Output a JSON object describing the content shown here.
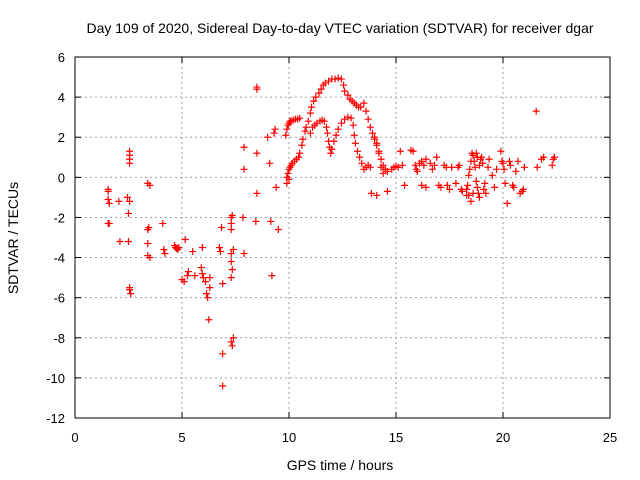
{
  "chart_data": {
    "type": "scatter",
    "title": "Day 109 of 2020, Sidereal Day-to-day VTEC variation (SDTVAR) for receiver dgar",
    "xlabel": "GPS time / hours",
    "ylabel": "SDTVAR / TECUs",
    "xlim": [
      0,
      25
    ],
    "ylim": [
      -12,
      6
    ],
    "xticks": [
      0,
      5,
      10,
      15,
      20,
      25
    ],
    "yticks": [
      -12,
      -10,
      -8,
      -6,
      -4,
      -2,
      0,
      2,
      4,
      6
    ],
    "grid": true,
    "marker": "+",
    "color": "#ff0000",
    "series": [
      {
        "name": "SDTVAR",
        "points": [
          [
            1.55,
            -0.6
          ],
          [
            1.55,
            -0.7
          ],
          [
            1.55,
            -1.1
          ],
          [
            1.6,
            -1.3
          ],
          [
            1.6,
            -2.3
          ],
          [
            1.55,
            -2.3
          ],
          [
            2.05,
            -1.2
          ],
          [
            2.1,
            -3.2
          ],
          [
            2.5,
            -3.2
          ],
          [
            2.45,
            -1.0
          ],
          [
            2.5,
            -1.8
          ],
          [
            2.55,
            1.3
          ],
          [
            2.55,
            1.1
          ],
          [
            2.55,
            0.9
          ],
          [
            2.55,
            0.7
          ],
          [
            2.55,
            -1.2
          ],
          [
            2.55,
            -5.5
          ],
          [
            2.55,
            -5.6
          ],
          [
            2.6,
            -5.8
          ],
          [
            3.4,
            -0.3
          ],
          [
            3.5,
            -0.4
          ],
          [
            3.4,
            -2.6
          ],
          [
            3.45,
            -2.5
          ],
          [
            3.4,
            -3.3
          ],
          [
            3.4,
            -3.9
          ],
          [
            3.5,
            -4.0
          ],
          [
            4.1,
            -2.3
          ],
          [
            4.15,
            -3.6
          ],
          [
            4.2,
            -3.8
          ],
          [
            4.65,
            -3.4
          ],
          [
            4.7,
            -3.5
          ],
          [
            4.75,
            -3.55
          ],
          [
            4.8,
            -3.6
          ],
          [
            4.85,
            -3.5
          ],
          [
            5.0,
            -5.1
          ],
          [
            5.1,
            -5.2
          ],
          [
            5.15,
            -3.1
          ],
          [
            5.25,
            -4.9
          ],
          [
            5.3,
            -4.7
          ],
          [
            5.5,
            -3.7
          ],
          [
            5.6,
            -4.9
          ],
          [
            5.95,
            -3.5
          ],
          [
            5.9,
            -4.5
          ],
          [
            5.95,
            -4.8
          ],
          [
            6.0,
            -5.0
          ],
          [
            6.1,
            -5.2
          ],
          [
            6.15,
            -5.8
          ],
          [
            6.2,
            -6.0
          ],
          [
            6.3,
            -5.5
          ],
          [
            6.3,
            -5.0
          ],
          [
            6.25,
            -7.1
          ],
          [
            6.75,
            -3.5
          ],
          [
            6.8,
            -3.7
          ],
          [
            6.85,
            -2.5
          ],
          [
            6.9,
            -5.3
          ],
          [
            6.9,
            -8.8
          ],
          [
            6.9,
            -10.4
          ],
          [
            7.3,
            -2.0
          ],
          [
            7.3,
            -2.3
          ],
          [
            7.3,
            -2.6
          ],
          [
            7.35,
            -1.9
          ],
          [
            7.3,
            -3.8
          ],
          [
            7.3,
            -4.2
          ],
          [
            7.35,
            -4.6
          ],
          [
            7.3,
            -5.0
          ],
          [
            7.4,
            -3.6
          ],
          [
            7.3,
            -8.2
          ],
          [
            7.35,
            -8.4
          ],
          [
            7.4,
            -8.0
          ],
          [
            7.9,
            1.5
          ],
          [
            7.9,
            0.4
          ],
          [
            7.85,
            -2.0
          ],
          [
            7.9,
            -3.8
          ],
          [
            8.5,
            4.4
          ],
          [
            8.5,
            4.5
          ],
          [
            8.5,
            1.2
          ],
          [
            8.5,
            -0.8
          ],
          [
            8.45,
            -2.2
          ],
          [
            9.0,
            2.0
          ],
          [
            9.1,
            0.7
          ],
          [
            9.15,
            -2.2
          ],
          [
            9.2,
            -4.9
          ],
          [
            9.3,
            2.2
          ],
          [
            9.35,
            2.4
          ],
          [
            9.4,
            -0.5
          ],
          [
            9.5,
            -2.6
          ],
          [
            9.85,
            2.1
          ],
          [
            9.9,
            2.4
          ],
          [
            9.95,
            2.6
          ],
          [
            10.0,
            2.7
          ],
          [
            10.05,
            2.8
          ],
          [
            10.1,
            2.8
          ],
          [
            10.2,
            2.85
          ],
          [
            10.3,
            2.9
          ],
          [
            10.4,
            2.9
          ],
          [
            10.5,
            2.95
          ],
          [
            9.9,
            0.0
          ],
          [
            9.95,
            0.2
          ],
          [
            10.0,
            0.4
          ],
          [
            10.05,
            0.5
          ],
          [
            10.1,
            0.6
          ],
          [
            10.15,
            0.7
          ],
          [
            10.25,
            0.8
          ],
          [
            10.35,
            0.9
          ],
          [
            10.45,
            1.0
          ],
          [
            9.9,
            -0.3
          ],
          [
            10.0,
            -0.1
          ],
          [
            10.5,
            1.2
          ],
          [
            10.6,
            1.6
          ],
          [
            10.65,
            1.9
          ],
          [
            10.75,
            2.3
          ],
          [
            10.8,
            2.5
          ],
          [
            10.9,
            2.8
          ],
          [
            11.0,
            3.2
          ],
          [
            11.05,
            3.5
          ],
          [
            11.15,
            3.8
          ],
          [
            11.25,
            4.0
          ],
          [
            11.4,
            4.2
          ],
          [
            11.5,
            4.4
          ],
          [
            11.6,
            4.6
          ],
          [
            11.7,
            4.7
          ],
          [
            11.85,
            4.8
          ],
          [
            12.0,
            4.9
          ],
          [
            12.15,
            4.9
          ],
          [
            12.3,
            4.95
          ],
          [
            12.45,
            4.9
          ],
          [
            12.55,
            4.6
          ],
          [
            12.6,
            4.3
          ],
          [
            12.75,
            4.1
          ],
          [
            12.85,
            3.9
          ],
          [
            12.95,
            3.8
          ],
          [
            13.05,
            3.7
          ],
          [
            13.15,
            3.6
          ],
          [
            13.25,
            3.5
          ],
          [
            13.35,
            3.5
          ],
          [
            11.0,
            2.2
          ],
          [
            11.1,
            2.5
          ],
          [
            11.2,
            2.6
          ],
          [
            11.3,
            2.7
          ],
          [
            11.45,
            2.8
          ],
          [
            11.55,
            2.85
          ],
          [
            11.65,
            2.8
          ],
          [
            11.75,
            2.5
          ],
          [
            11.8,
            2.2
          ],
          [
            11.85,
            1.8
          ],
          [
            11.9,
            1.5
          ],
          [
            11.95,
            1.2
          ],
          [
            12.0,
            1.4
          ],
          [
            12.1,
            1.8
          ],
          [
            12.2,
            2.1
          ],
          [
            12.3,
            2.4
          ],
          [
            12.45,
            2.7
          ],
          [
            12.6,
            2.9
          ],
          [
            12.75,
            3.0
          ],
          [
            12.9,
            2.95
          ],
          [
            13.0,
            2.6
          ],
          [
            13.05,
            2.1
          ],
          [
            13.1,
            1.7
          ],
          [
            13.2,
            1.3
          ],
          [
            13.3,
            1.0
          ],
          [
            13.4,
            0.7
          ],
          [
            13.5,
            0.4
          ],
          [
            13.6,
            0.5
          ],
          [
            13.7,
            0.6
          ],
          [
            13.8,
            0.5
          ],
          [
            13.5,
            3.7
          ],
          [
            13.6,
            3.3
          ],
          [
            13.7,
            2.9
          ],
          [
            13.8,
            2.5
          ],
          [
            13.9,
            2.2
          ],
          [
            14.0,
            1.9
          ],
          [
            14.1,
            1.6
          ],
          [
            14.2,
            1.2
          ],
          [
            14.3,
            0.9
          ],
          [
            14.4,
            0.6
          ],
          [
            14.5,
            0.4
          ],
          [
            14.6,
            0.3
          ],
          [
            14.0,
            2.0
          ],
          [
            14.1,
            1.7
          ],
          [
            14.2,
            1.3
          ],
          [
            14.3,
            0.5
          ],
          [
            14.4,
            0.2
          ],
          [
            13.85,
            -0.8
          ],
          [
            14.1,
            -0.9
          ],
          [
            14.6,
            -0.7
          ],
          [
            14.8,
            0.4
          ],
          [
            14.9,
            0.5
          ],
          [
            15.0,
            0.55
          ],
          [
            15.1,
            0.5
          ],
          [
            15.2,
            1.3
          ],
          [
            15.3,
            0.6
          ],
          [
            15.4,
            -0.4
          ],
          [
            15.7,
            1.35
          ],
          [
            15.8,
            1.3
          ],
          [
            15.9,
            0.6
          ],
          [
            15.95,
            0.4
          ],
          [
            16.0,
            0.3
          ],
          [
            16.1,
            0.7
          ],
          [
            16.2,
            0.8
          ],
          [
            16.3,
            0.6
          ],
          [
            16.4,
            0.9
          ],
          [
            16.2,
            -0.4
          ],
          [
            16.4,
            -0.5
          ],
          [
            16.6,
            0.7
          ],
          [
            16.7,
            0.4
          ],
          [
            16.8,
            0.6
          ],
          [
            16.9,
            1.0
          ],
          [
            17.0,
            -0.4
          ],
          [
            17.1,
            -0.5
          ],
          [
            17.25,
            0.6
          ],
          [
            17.35,
            0.5
          ],
          [
            17.4,
            -0.4
          ],
          [
            17.5,
            -0.6
          ],
          [
            17.6,
            0.5
          ],
          [
            17.8,
            -0.3
          ],
          [
            17.9,
            0.5
          ],
          [
            17.95,
            0.6
          ],
          [
            18.05,
            -0.6
          ],
          [
            18.1,
            -0.7
          ],
          [
            18.3,
            -0.9
          ],
          [
            18.3,
            -0.6
          ],
          [
            18.35,
            -0.4
          ],
          [
            18.4,
            0.1
          ],
          [
            18.45,
            0.4
          ],
          [
            18.5,
            0.8
          ],
          [
            18.55,
            1.2
          ],
          [
            18.6,
            1.1
          ],
          [
            18.65,
            0.8
          ],
          [
            18.7,
            0.5
          ],
          [
            18.75,
            -0.2
          ],
          [
            18.8,
            -0.5
          ],
          [
            18.85,
            -0.8
          ],
          [
            18.9,
            -1.0
          ],
          [
            18.4,
            -0.9
          ],
          [
            18.5,
            -1.2
          ],
          [
            18.6,
            -0.8
          ],
          [
            18.75,
            1.2
          ],
          [
            18.8,
            1.0
          ],
          [
            18.9,
            0.6
          ],
          [
            18.95,
            0.9
          ],
          [
            19.0,
            1.0
          ],
          [
            19.05,
            0.7
          ],
          [
            19.1,
            -0.6
          ],
          [
            19.15,
            -0.3
          ],
          [
            19.2,
            -0.8
          ],
          [
            19.3,
            0.5
          ],
          [
            19.35,
            0.9
          ],
          [
            19.5,
            0.1
          ],
          [
            19.6,
            -0.5
          ],
          [
            19.7,
            0.4
          ],
          [
            19.9,
            1.3
          ],
          [
            19.95,
            0.8
          ],
          [
            20.0,
            0.7
          ],
          [
            20.05,
            0.4
          ],
          [
            20.1,
            -0.3
          ],
          [
            20.2,
            -1.3
          ],
          [
            20.3,
            0.8
          ],
          [
            20.35,
            0.6
          ],
          [
            20.45,
            -0.4
          ],
          [
            20.5,
            -0.5
          ],
          [
            20.6,
            0.3
          ],
          [
            20.7,
            0.8
          ],
          [
            20.8,
            -0.8
          ],
          [
            20.9,
            -0.7
          ],
          [
            20.95,
            -0.6
          ],
          [
            21.0,
            0.5
          ],
          [
            21.55,
            3.3
          ],
          [
            21.6,
            0.5
          ],
          [
            21.8,
            0.9
          ],
          [
            21.9,
            1.0
          ],
          [
            22.3,
            0.6
          ],
          [
            22.35,
            0.9
          ],
          [
            22.4,
            1.0
          ]
        ]
      }
    ]
  }
}
